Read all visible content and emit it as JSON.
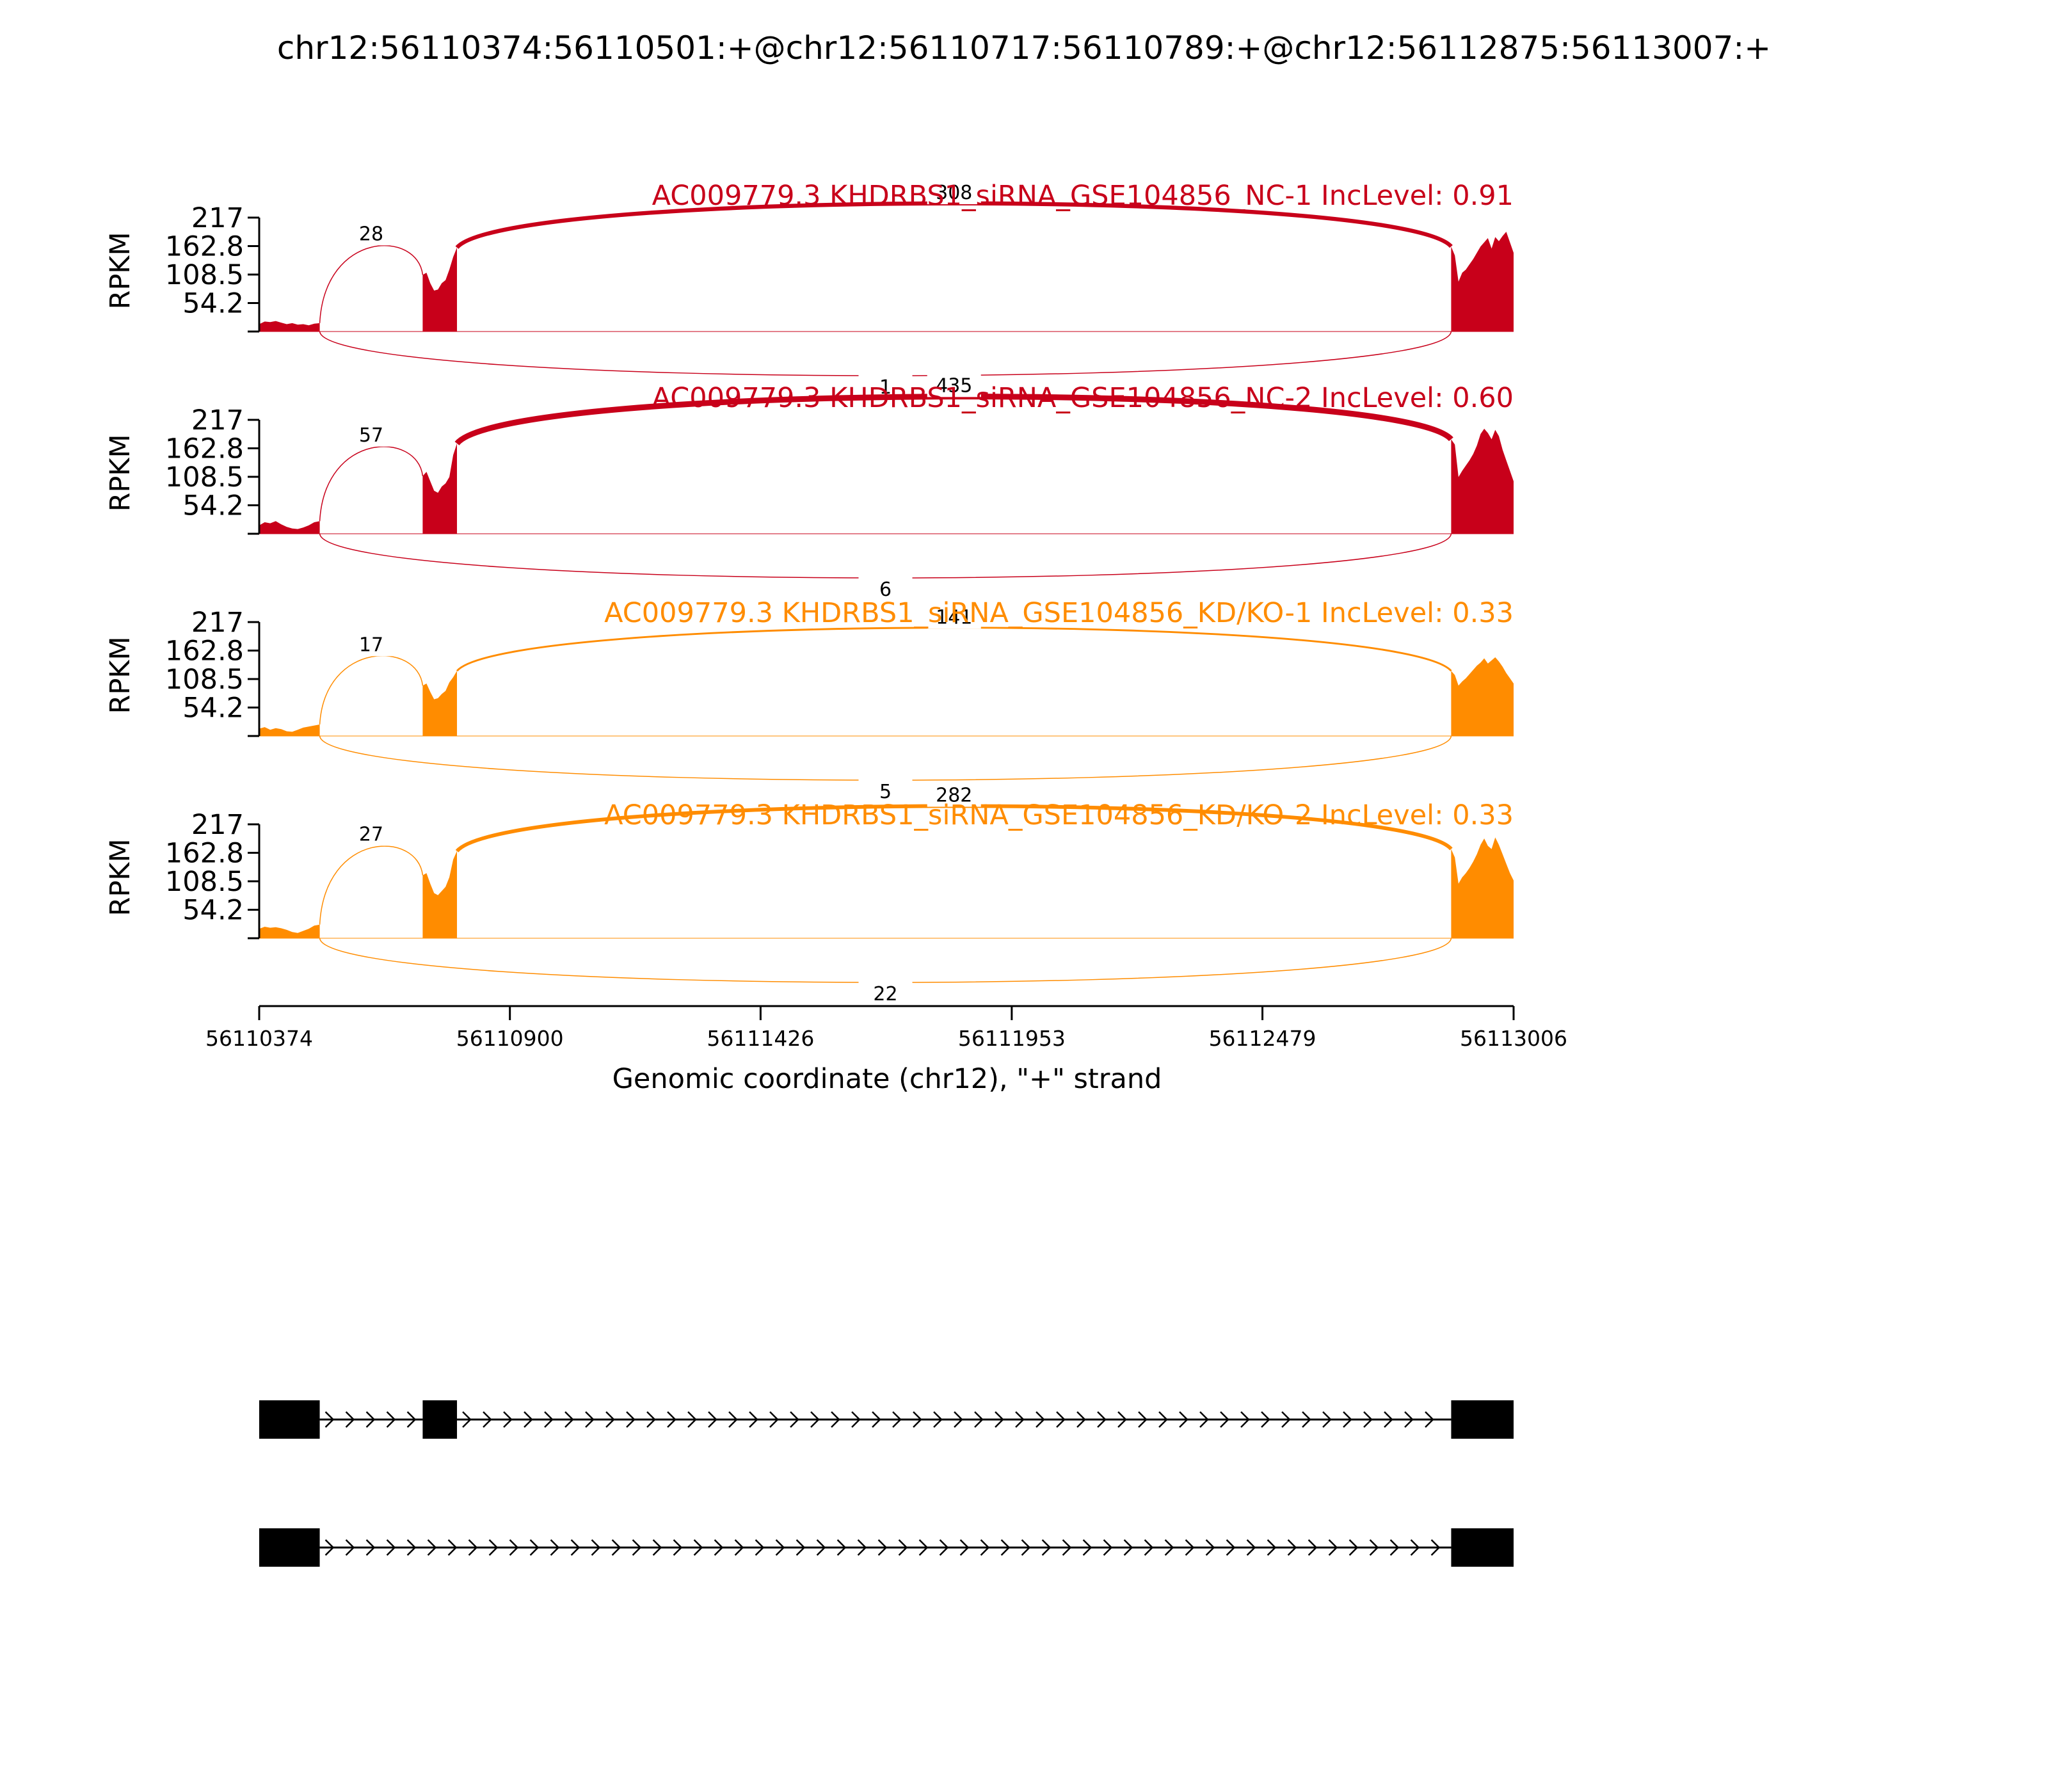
{
  "title": "chr12:56110374:56110501:+@chr12:56110717:56110789:+@chr12:56112875:56113007:+",
  "chart_data": {
    "type": "sashimi",
    "ylabel": "RPKM",
    "ylim": [
      0,
      217
    ],
    "yticks": [
      "217",
      "162.8",
      "108.5",
      "54.2"
    ],
    "xlim": [
      56110374,
      56113006
    ],
    "xticks": [
      56110374,
      56110900,
      56111426,
      56111953,
      56112479,
      56113006
    ],
    "xlabel": "Genomic coordinate (chr12), \"+\" strand",
    "exons": [
      {
        "start": 56110374,
        "end": 56110501
      },
      {
        "start": 56110717,
        "end": 56110789
      },
      {
        "start": 56112875,
        "end": 56113007
      }
    ],
    "samples": [
      {
        "title": "AC009779.3 KHDRBS1_siRNA_GSE104856_NC-1 IncLevel: 0.91",
        "color": "#C8001A",
        "junctions": [
          {
            "from": 56110501,
            "to": 56110717,
            "count": "28",
            "side": "above"
          },
          {
            "from": 56110789,
            "to": 56112875,
            "count": "308",
            "side": "above"
          },
          {
            "from": 56110501,
            "to": 56112875,
            "count": "1",
            "side": "below"
          }
        ],
        "coverage": [
          {
            "start": 56110374,
            "end": 56110501,
            "profile": [
              14,
              19,
              18,
              20,
              17,
              14,
              16,
              13,
              14,
              12,
              15,
              16
            ]
          },
          {
            "start": 56110717,
            "end": 56110789,
            "profile": [
              108,
              112,
              92,
              78,
              80,
              92,
              98,
              118,
              142,
              160
            ]
          },
          {
            "start": 56112875,
            "end": 56113007,
            "profile": [
              162,
              145,
              95,
              112,
              118,
              128,
              138,
              150,
              162,
              170,
              178,
              158,
              180,
              172,
              182,
              190,
              170,
              150
            ]
          }
        ]
      },
      {
        "title": "AC009779.3 KHDRBS1_siRNA_GSE104856_NC-2 IncLevel: 0.60",
        "color": "#C8001A",
        "junctions": [
          {
            "from": 56110501,
            "to": 56110717,
            "count": "57",
            "side": "above"
          },
          {
            "from": 56110789,
            "to": 56112875,
            "count": "435",
            "side": "above"
          },
          {
            "from": 56110501,
            "to": 56112875,
            "count": "6",
            "side": "below"
          }
        ],
        "coverage": [
          {
            "start": 56110374,
            "end": 56110501,
            "profile": [
              16,
              22,
              20,
              24,
              18,
              13,
              10,
              9,
              12,
              16,
              22,
              24
            ]
          },
          {
            "start": 56110717,
            "end": 56110789,
            "profile": [
              110,
              118,
              100,
              82,
              78,
              90,
              96,
              108,
              150,
              172
            ]
          },
          {
            "start": 56112875,
            "end": 56113007,
            "profile": [
              180,
              170,
              108,
              120,
              130,
              140,
              152,
              168,
              190,
              200,
              192,
              180,
              198,
              186,
              160,
              140,
              120,
              100
            ]
          }
        ]
      },
      {
        "title": "AC009779.3 KHDRBS1_siRNA_GSE104856_KD/KO-1 IncLevel: 0.33",
        "color": "#FF8C00",
        "junctions": [
          {
            "from": 56110501,
            "to": 56110717,
            "count": "17",
            "side": "above"
          },
          {
            "from": 56110789,
            "to": 56112875,
            "count": "141",
            "side": "above"
          },
          {
            "from": 56110501,
            "to": 56112875,
            "count": "5",
            "side": "below"
          }
        ],
        "coverage": [
          {
            "start": 56110374,
            "end": 56110501,
            "profile": [
              14,
              17,
              12,
              15,
              13,
              9,
              8,
              12,
              16,
              18,
              20,
              22
            ]
          },
          {
            "start": 56110717,
            "end": 56110789,
            "profile": [
              96,
              100,
              84,
              70,
              72,
              80,
              86,
              102,
              112,
              124
            ]
          },
          {
            "start": 56112875,
            "end": 56113007,
            "profile": [
              124,
              116,
              96,
              104,
              110,
              118,
              126,
              134,
              140,
              148,
              138,
              144,
              150,
              142,
              132,
              120,
              110,
              100
            ]
          }
        ]
      },
      {
        "title": "AC009779.3 KHDRBS1_siRNA_GSE104856_KD/KO-2 IncLevel: 0.33",
        "color": "#FF8C00",
        "junctions": [
          {
            "from": 56110501,
            "to": 56110717,
            "count": "27",
            "side": "above"
          },
          {
            "from": 56110789,
            "to": 56112875,
            "count": "282",
            "side": "above"
          },
          {
            "from": 56110501,
            "to": 56112875,
            "count": "22",
            "side": "below"
          }
        ],
        "coverage": [
          {
            "start": 56110374,
            "end": 56110501,
            "profile": [
              18,
              22,
              20,
              21,
              19,
              16,
              12,
              10,
              14,
              18,
              24,
              26
            ]
          },
          {
            "start": 56110717,
            "end": 56110789,
            "profile": [
              120,
              124,
              104,
              86,
              82,
              90,
              98,
              116,
              150,
              166
            ]
          },
          {
            "start": 56112875,
            "end": 56113007,
            "profile": [
              170,
              154,
              104,
              116,
              124,
              134,
              146,
              160,
              178,
              190,
              176,
              170,
              192,
              178,
              160,
              142,
              124,
              110
            ]
          }
        ]
      }
    ],
    "transcripts": [
      {
        "exons": [
          {
            "start": 56110374,
            "end": 56110501
          },
          {
            "start": 56110717,
            "end": 56110789
          },
          {
            "start": 56112875,
            "end": 56113007
          }
        ]
      },
      {
        "exons": [
          {
            "start": 56110374,
            "end": 56110501
          },
          {
            "start": 56112875,
            "end": 56113007
          }
        ]
      }
    ]
  }
}
